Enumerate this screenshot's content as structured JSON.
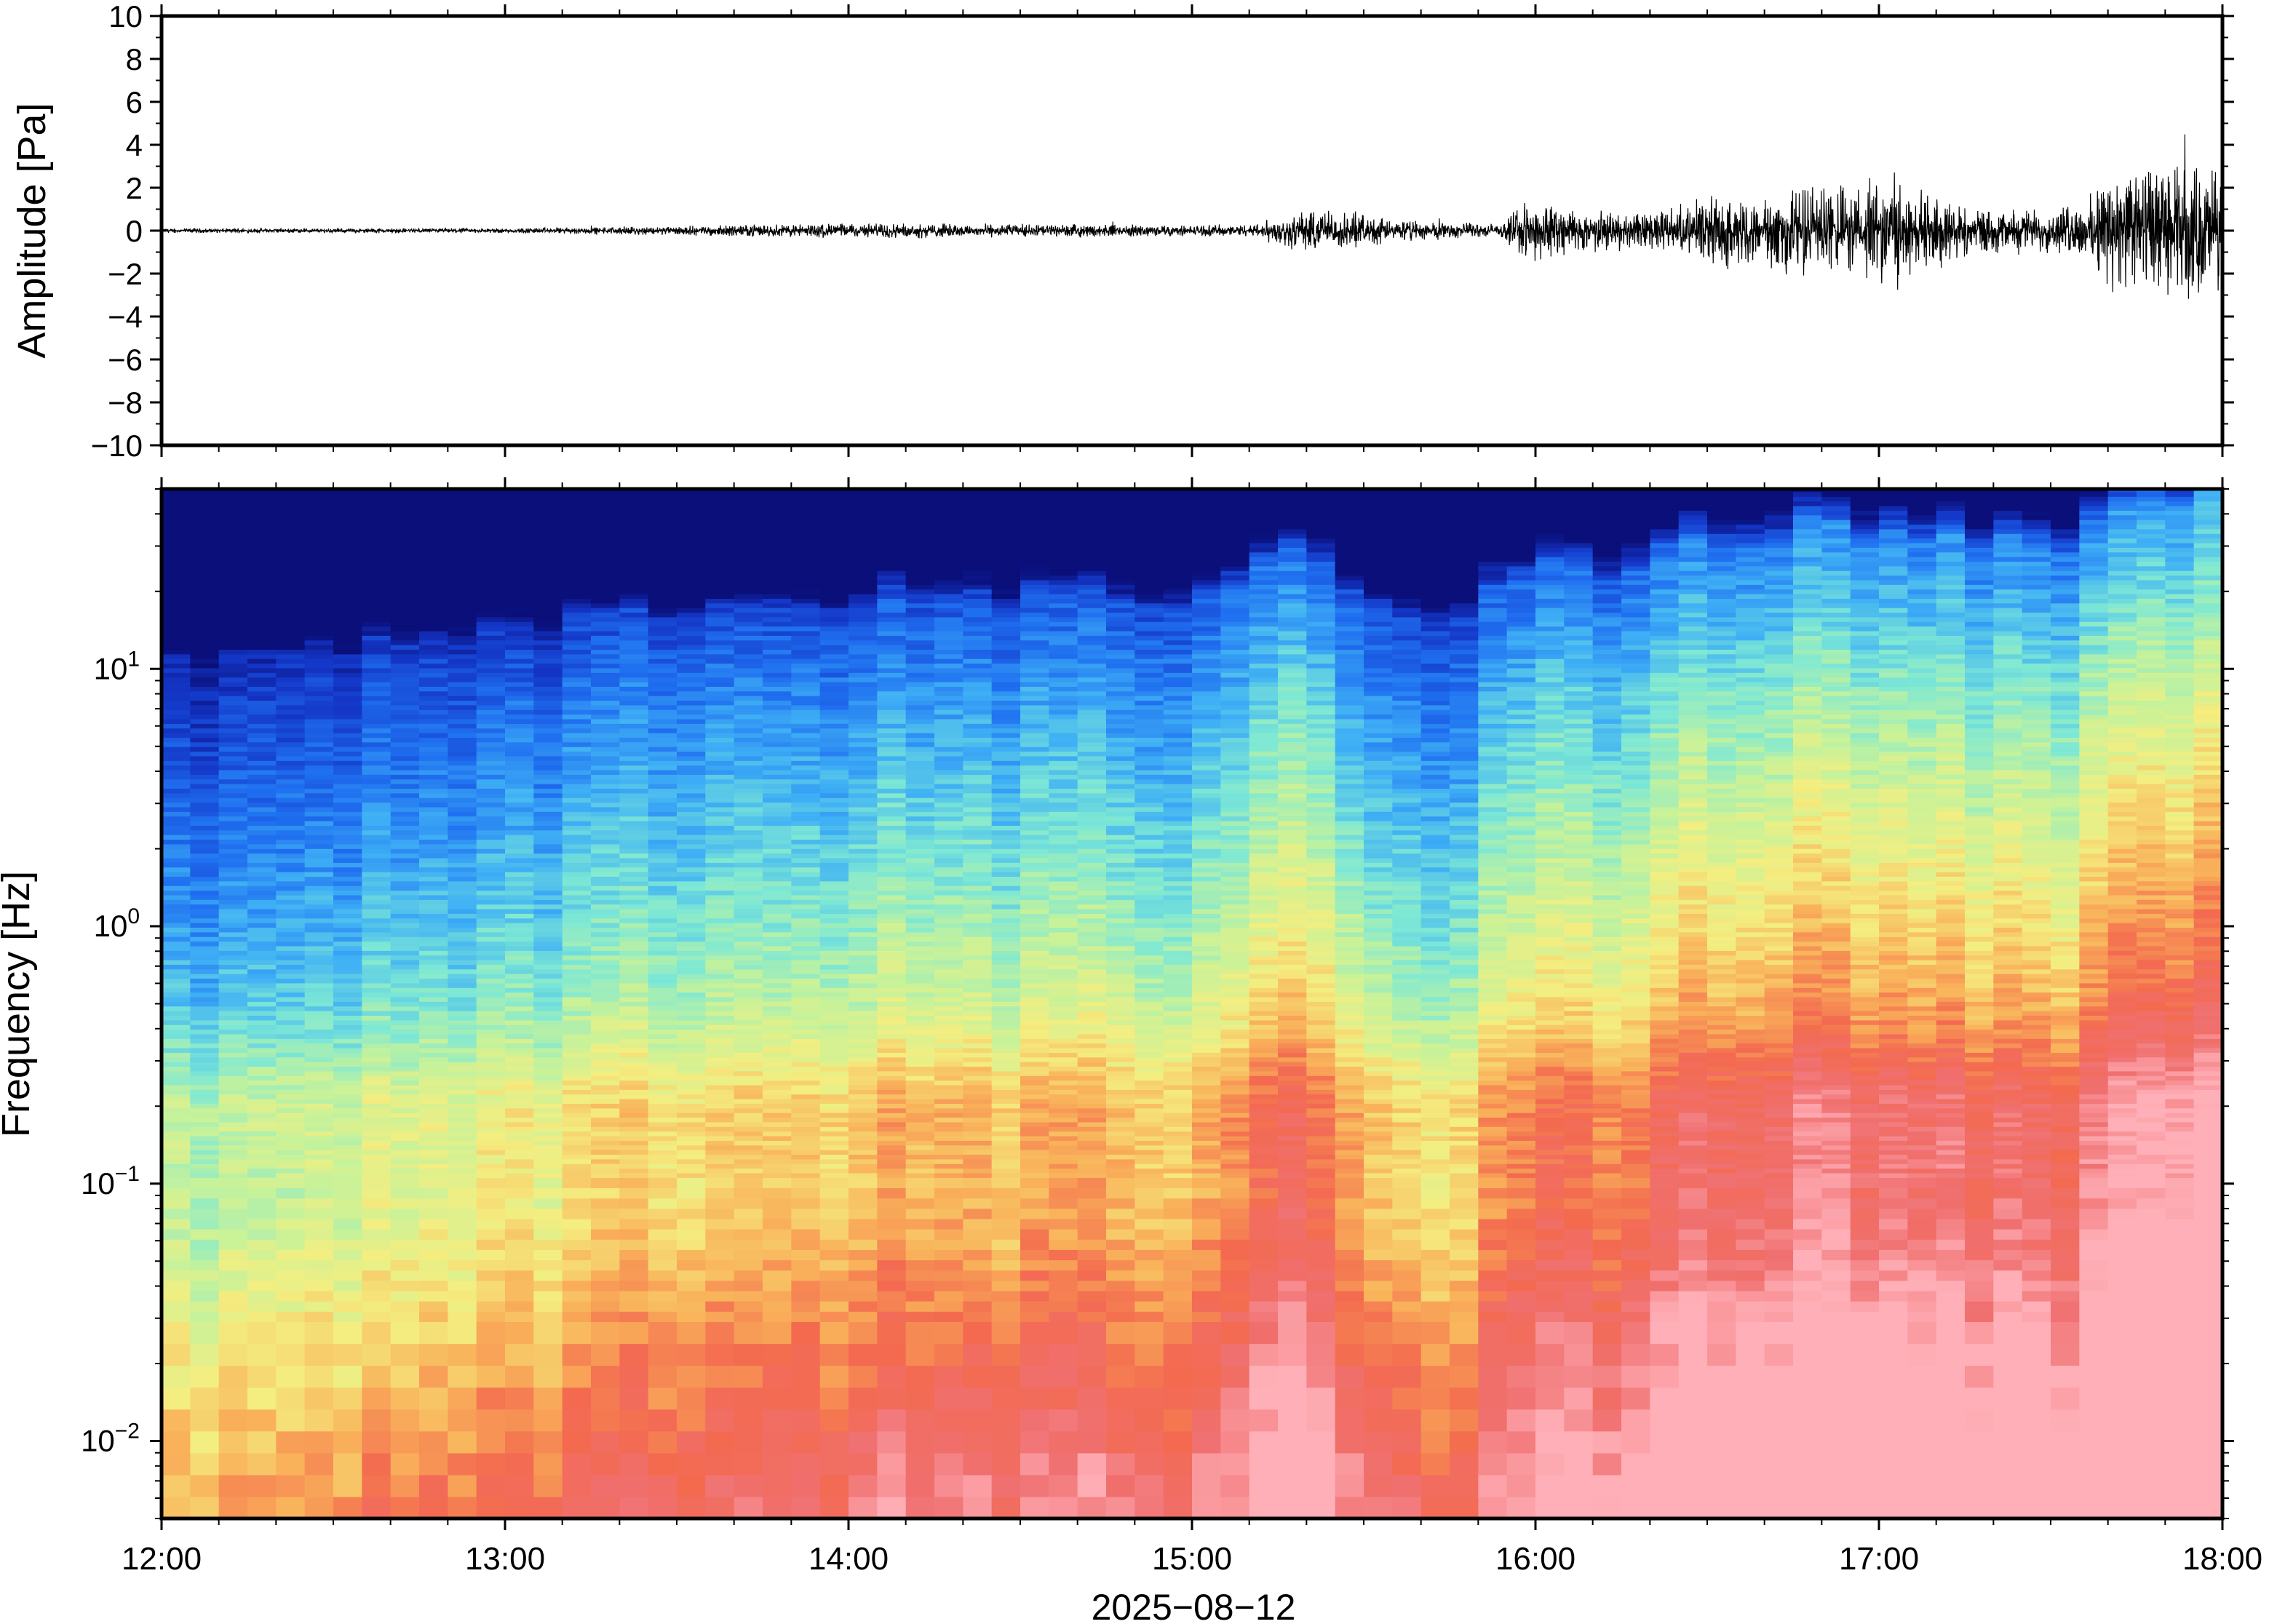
{
  "chart_data": [
    {
      "type": "line",
      "ylabel": "Amplitude [Pa]",
      "ylim": [
        -10,
        10
      ],
      "yticks": [
        "10",
        "8",
        "6",
        "4",
        "2",
        "0",
        "−2",
        "−4",
        "−6",
        "−8",
        "−10"
      ],
      "xlim": [
        "12:00",
        "18:00"
      ],
      "grid": false,
      "series": [
        {
          "color": "#000000",
          "envelope_hours": [
            12.0,
            12.5,
            13.0,
            13.5,
            13.8,
            14.0,
            14.5,
            15.0,
            15.18,
            15.3,
            15.4,
            15.58,
            15.9,
            16.0,
            16.1,
            16.3,
            16.45,
            16.55,
            16.65,
            16.7,
            16.9,
            17.0,
            17.3,
            17.5,
            17.6,
            17.65,
            17.75,
            17.85,
            18.0
          ],
          "envelope_amplitude_pa": [
            0.1,
            0.1,
            0.12,
            0.2,
            0.3,
            0.35,
            0.3,
            0.25,
            0.3,
            0.9,
            1.0,
            0.5,
            0.3,
            1.6,
            1.0,
            0.8,
            1.2,
            1.8,
            1.2,
            2.2,
            2.0,
            2.4,
            1.0,
            1.0,
            1.3,
            2.5,
            3.0,
            3.0,
            3.2
          ]
        }
      ]
    },
    {
      "type": "heatmap",
      "ylabel": "Frequency [Hz]",
      "xlabel": "2025−08−12",
      "yscale": "log",
      "ylim": [
        0.005,
        50
      ],
      "yticks": [
        {
          "base": "10",
          "exp": "1",
          "value": 10
        },
        {
          "base": "10",
          "exp": "0",
          "value": 1
        },
        {
          "base": "10",
          "exp": "−1",
          "value": 0.1
        },
        {
          "base": "10",
          "exp": "−2",
          "value": 0.01
        }
      ],
      "xticks": [
        "12:00",
        "13:00",
        "14:00",
        "15:00",
        "16:00",
        "17:00",
        "18:00"
      ],
      "xlim": [
        "12:00",
        "18:00"
      ],
      "colormap": [
        "#0a0f7a",
        "#1437c8",
        "#1f6ff0",
        "#3fb0f5",
        "#7de8d5",
        "#c6f29a",
        "#f4ee80",
        "#f9b25a",
        "#f36a4f",
        "#f07070",
        "#ffb0b8"
      ],
      "relative_power_by_hour": {
        "hours": [
          12.0,
          12.5,
          13.0,
          13.5,
          14.0,
          14.5,
          15.0,
          15.2,
          15.4,
          15.6,
          15.75,
          15.85,
          16.0,
          16.25,
          16.45,
          16.65,
          17.0,
          17.3,
          17.55,
          17.7,
          18.0
        ],
        "level": [
          0.0,
          0.1,
          0.18,
          0.32,
          0.35,
          0.36,
          0.38,
          0.58,
          0.55,
          0.3,
          0.15,
          0.4,
          0.56,
          0.52,
          0.68,
          0.74,
          0.76,
          0.7,
          0.64,
          0.88,
          0.92
        ]
      },
      "grid": false
    }
  ]
}
